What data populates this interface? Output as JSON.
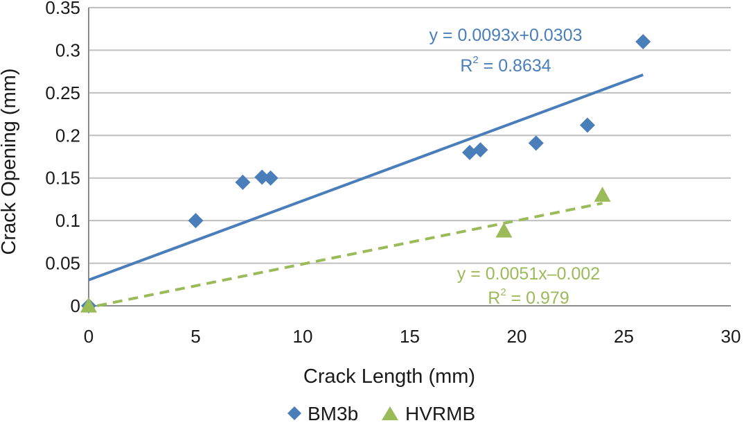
{
  "chart_data": {
    "type": "scatter",
    "title": "",
    "xlabel": "Crack Length (mm)",
    "ylabel": "Crack Opening (mm)",
    "xlim": [
      0,
      30
    ],
    "ylim": [
      0,
      0.35
    ],
    "x_ticks": [
      "0",
      "5",
      "10",
      "15",
      "20",
      "25",
      "30"
    ],
    "y_ticks": [
      "0",
      "0.05",
      "0.1",
      "0.15",
      "0.2",
      "0.25",
      "0.3",
      "0.35"
    ],
    "grid": "horizontal",
    "legend_position": "bottom",
    "series": [
      {
        "name": "BM3b",
        "marker": "diamond",
        "color": "#4a7ebb",
        "x": [
          0,
          5.0,
          7.2,
          8.1,
          8.5,
          17.8,
          18.3,
          20.9,
          23.3,
          25.9
        ],
        "y": [
          0,
          0.1,
          0.145,
          0.151,
          0.15,
          0.18,
          0.183,
          0.191,
          0.212,
          0.31
        ],
        "trendline": {
          "style": "solid",
          "slope": 0.0093,
          "intercept": 0.0303,
          "x_range": [
            0,
            25.9
          ],
          "equation": "y = 0.0093x+0.0303",
          "r2_prefix": "R",
          "r2_exp": "2",
          "r2_value": " = 0.8634"
        }
      },
      {
        "name": "HVRMB",
        "marker": "triangle",
        "color": "#9bbb59",
        "x": [
          0,
          19.4,
          24.0
        ],
        "y": [
          0,
          0.088,
          0.13
        ],
        "trendline": {
          "style": "dashed",
          "slope": 0.0051,
          "intercept": -0.002,
          "x_range": [
            0.4,
            24.0
          ],
          "equation": "y = 0.0051x–0.002",
          "r2_prefix": "R",
          "r2_exp": "2",
          "r2_value": " = 0.979"
        }
      }
    ]
  }
}
